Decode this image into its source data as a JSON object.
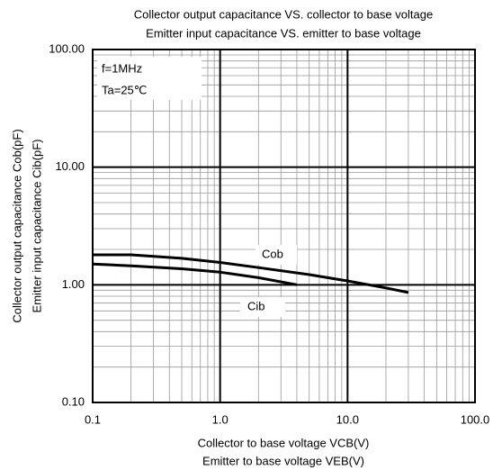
{
  "chart_data": {
    "type": "line",
    "title": [
      "Collector output capacitance VS. collector to base voltage",
      "Emitter input capacitance VS. emitter to base voltage"
    ],
    "x_label": [
      "Collector to base voltage VCB(V)",
      "Emitter to base voltage VEB(V)"
    ],
    "y_label": [
      "Collector output capacitance Cob(pF)",
      "Emitter input capacitance Cib(pF)"
    ],
    "annotations": [
      "f=1MHz",
      "Ta=25℃"
    ],
    "xlim": [
      0.1,
      100
    ],
    "ylim": [
      0.1,
      100
    ],
    "xticks": [
      0.1,
      {
        "value": 1,
        "label": "1.0"
      },
      {
        "value": 10,
        "label": "10.0"
      },
      {
        "value": 100,
        "label": "100.0"
      }
    ],
    "yticks": [
      {
        "value": 0.1,
        "label": "0.10"
      },
      {
        "value": 1,
        "label": "1.00"
      },
      {
        "value": 10,
        "label": "10.00"
      },
      {
        "value": 100,
        "label": "100.00"
      }
    ],
    "log_x": true,
    "log_y": true,
    "grid": true,
    "series": [
      {
        "name": "Cob",
        "color": "#000000",
        "x": [
          0.1,
          0.2,
          0.5,
          1,
          2,
          5,
          10,
          20,
          30
        ],
        "values": [
          1.8,
          1.8,
          1.68,
          1.55,
          1.4,
          1.22,
          1.08,
          0.94,
          0.86
        ]
      },
      {
        "name": "Cib",
        "color": "#000000",
        "x": [
          0.1,
          0.2,
          0.5,
          1,
          2,
          4
        ],
        "values": [
          1.5,
          1.45,
          1.37,
          1.28,
          1.15,
          1.0
        ]
      }
    ]
  }
}
